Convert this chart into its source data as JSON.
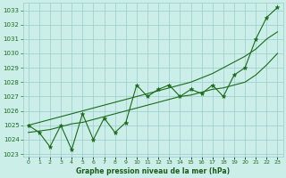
{
  "title": "Graphe pression niveau de la mer (hPa)",
  "x_labels": [
    "0",
    "1",
    "2",
    "3",
    "4",
    "5",
    "6",
    "7",
    "8",
    "9",
    "10",
    "11",
    "12",
    "13",
    "14",
    "15",
    "16",
    "17",
    "18",
    "19",
    "20",
    "21",
    "22",
    "23"
  ],
  "x_values": [
    0,
    1,
    2,
    3,
    4,
    5,
    6,
    7,
    8,
    9,
    10,
    11,
    12,
    13,
    14,
    15,
    16,
    17,
    18,
    19,
    20,
    21,
    22,
    23
  ],
  "y_main": [
    1025.0,
    1024.5,
    1023.5,
    1025.0,
    1023.3,
    1025.8,
    1024.0,
    1025.5,
    1024.5,
    1025.2,
    1027.8,
    1027.0,
    1027.5,
    1027.8,
    1027.0,
    1027.5,
    1027.2,
    1027.8,
    1027.0,
    1028.5,
    1029.0,
    1031.0,
    1032.5,
    1033.2
  ],
  "y_trend_low": [
    1024.5,
    1024.6,
    1024.7,
    1024.9,
    1025.1,
    1025.2,
    1025.4,
    1025.6,
    1025.8,
    1026.0,
    1026.2,
    1026.4,
    1026.6,
    1026.8,
    1027.0,
    1027.1,
    1027.3,
    1027.5,
    1027.6,
    1027.8,
    1028.0,
    1028.5,
    1029.2,
    1030.0
  ],
  "y_trend_high": [
    1025.0,
    1025.2,
    1025.4,
    1025.6,
    1025.8,
    1026.0,
    1026.2,
    1026.4,
    1026.6,
    1026.8,
    1027.0,
    1027.2,
    1027.4,
    1027.6,
    1027.8,
    1028.0,
    1028.3,
    1028.6,
    1029.0,
    1029.4,
    1029.8,
    1030.3,
    1031.0,
    1031.5
  ],
  "ylim": [
    1022.8,
    1033.5
  ],
  "yticks": [
    1023,
    1024,
    1025,
    1026,
    1027,
    1028,
    1029,
    1030,
    1031,
    1032,
    1033
  ],
  "bg_color": "#cceee8",
  "line_color": "#1a6b1a",
  "grid_color": "#99cccc",
  "title_color": "#1a5c1a",
  "marker": "*",
  "marker_size": 3.5,
  "linewidth": 0.8
}
